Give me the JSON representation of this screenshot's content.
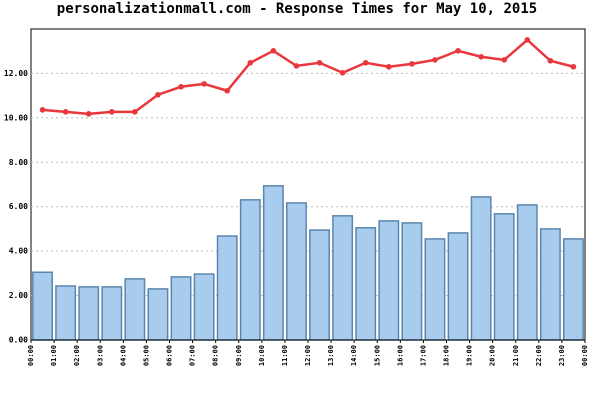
{
  "chart_data": {
    "type": "bar_line",
    "title": "personalizationmall.com - Response Times for May 10, 2015",
    "xticks": [
      {
        "value": 0,
        "label": "00:00"
      },
      {
        "value": 1,
        "label": "01:00"
      },
      {
        "value": 2,
        "label": "02:00"
      },
      {
        "value": 3,
        "label": "03:00"
      },
      {
        "value": 4,
        "label": "04:00"
      },
      {
        "value": 5,
        "label": "05:00"
      },
      {
        "value": 6,
        "label": "06:00"
      },
      {
        "value": 7,
        "label": "07:00"
      },
      {
        "value": 8,
        "label": "08:00"
      },
      {
        "value": 9,
        "label": "09:00"
      },
      {
        "value": 10,
        "label": "10:00"
      },
      {
        "value": 11,
        "label": "11:00"
      },
      {
        "value": 12,
        "label": "12:00"
      },
      {
        "value": 13,
        "label": "13:00"
      },
      {
        "value": 14,
        "label": "14:00"
      },
      {
        "value": 15,
        "label": "15:00"
      },
      {
        "value": 16,
        "label": "16:00"
      },
      {
        "value": 17,
        "label": "17:00"
      },
      {
        "value": 18,
        "label": "18:00"
      },
      {
        "value": 19,
        "label": "19:00"
      },
      {
        "value": 20,
        "label": "20:00"
      },
      {
        "value": 21,
        "label": "21:00"
      },
      {
        "value": 22,
        "label": "22:00"
      },
      {
        "value": 23,
        "label": "23:00"
      },
      {
        "value": 24,
        "label": "00:00"
      }
    ],
    "xlim": [
      0,
      24
    ],
    "ylim": [
      0,
      14
    ],
    "yticks": [
      {
        "value": 0,
        "label": "0.00"
      },
      {
        "value": 2,
        "label": "2.00"
      },
      {
        "value": 4,
        "label": "4.00"
      },
      {
        "value": 6,
        "label": "6.00"
      },
      {
        "value": 8,
        "label": "8.00"
      },
      {
        "value": 10,
        "label": "10.00"
      },
      {
        "value": 12,
        "label": "12.00"
      }
    ],
    "grid": true,
    "series": [
      {
        "kind": "bar",
        "color": "#a8ccee",
        "edge": "#5b86ad",
        "values": [
          3.05,
          2.43,
          2.39,
          2.39,
          2.75,
          2.3,
          2.84,
          2.97,
          4.68,
          6.31,
          6.94,
          6.17,
          4.95,
          5.59,
          5.05,
          5.36,
          5.27,
          4.55,
          4.82,
          6.44,
          5.68,
          6.08,
          5.0,
          4.55
        ]
      },
      {
        "kind": "line",
        "color": "#e8383d",
        "values": [
          10.36,
          10.27,
          10.18,
          10.27,
          10.27,
          11.04,
          11.4,
          11.53,
          11.22,
          12.48,
          13.02,
          12.34,
          12.48,
          12.03,
          12.48,
          12.3,
          12.43,
          12.61,
          13.02,
          12.75,
          12.61,
          13.51,
          12.57,
          12.3
        ]
      }
    ]
  }
}
